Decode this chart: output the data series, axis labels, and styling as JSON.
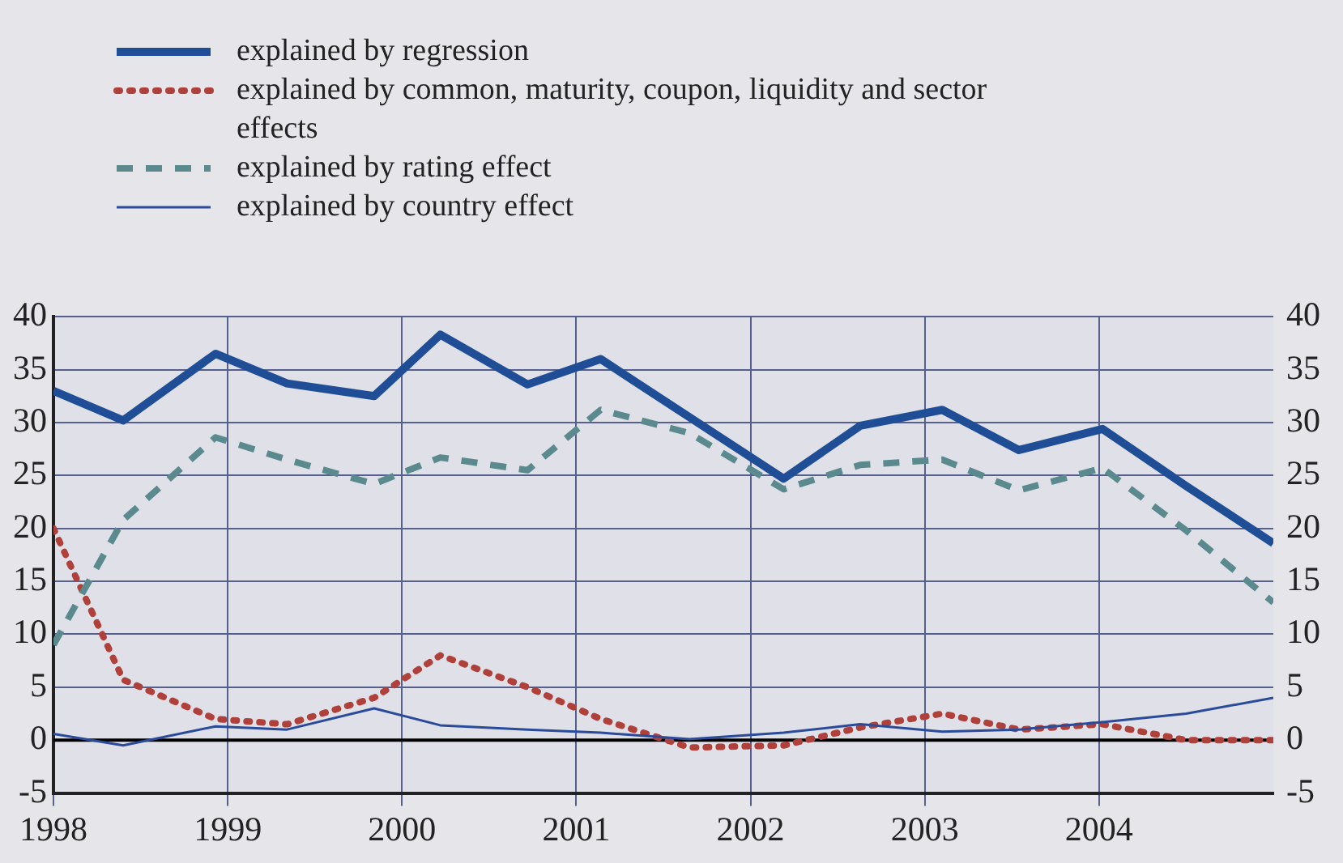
{
  "chart_data": {
    "type": "line",
    "x": [
      1998,
      1998.4,
      1998.93,
      1999.34,
      1999.84,
      2000.22,
      2000.72,
      2001.14,
      2001.65,
      2002.19,
      2002.63,
      2003.1,
      2003.54,
      2004.02,
      2004.5,
      2005
    ],
    "series": [
      {
        "name": "explained by regression",
        "color": "#1f4e96",
        "line_style": "solid",
        "values": [
          33,
          30.2,
          36.5,
          33.7,
          32.5,
          38.3,
          33.6,
          36,
          30.5,
          24.7,
          29.7,
          31.2,
          27.4,
          29.4,
          24,
          18.6
        ]
      },
      {
        "name": "explained by common, maturity, coupon, liquidity and sector effects",
        "color": "#b0403a",
        "line_style": "dotted",
        "values": [
          20,
          5.7,
          2,
          1.5,
          4,
          8,
          5,
          2,
          -0.7,
          -0.5,
          1.2,
          2.5,
          1,
          1.5,
          0,
          0
        ]
      },
      {
        "name": "explained by rating effect",
        "color": "#5a8a8e",
        "line_style": "dashed",
        "values": [
          9,
          20.8,
          28.6,
          26.5,
          24.2,
          26.7,
          25.5,
          31.2,
          29,
          23.7,
          26,
          26.5,
          23.6,
          25.7,
          19.8,
          13
        ]
      },
      {
        "name": "explained by country effect",
        "color": "#2a4a9a",
        "line_style": "solid",
        "values": [
          0.6,
          -0.5,
          1.3,
          1,
          3,
          1.4,
          1,
          0.7,
          0.1,
          0.7,
          1.5,
          0.8,
          1,
          1.7,
          2.5,
          4
        ]
      }
    ],
    "xlim": [
      1998,
      2005
    ],
    "xticks": [
      1998,
      1999,
      2000,
      2001,
      2002,
      2003,
      2004
    ],
    "ylim": [
      -5,
      40
    ],
    "yticks": [
      -5,
      0,
      5,
      10,
      15,
      20,
      25,
      30,
      35,
      40
    ],
    "y2lim": [
      -5,
      40
    ],
    "y2ticks": [
      -5,
      0,
      5,
      10,
      15,
      20,
      25,
      30,
      35,
      40
    ],
    "ref_lines": [
      {
        "axis": "y",
        "value": 0,
        "color": "#000000"
      }
    ],
    "grid": true,
    "legend": "top left",
    "marker": "none"
  }
}
